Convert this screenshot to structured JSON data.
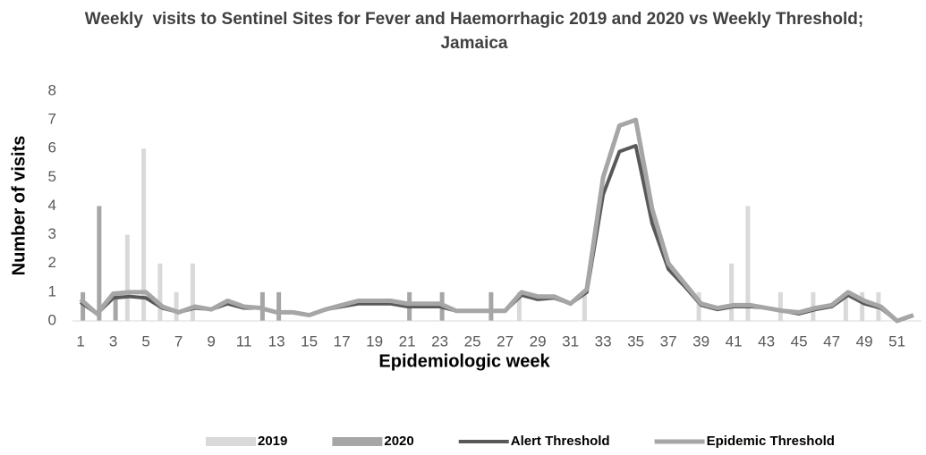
{
  "chart_data": {
    "type": "bar",
    "title": "Weekly  visits to Sentinel Sites for Fever and Haemorrhagic 2019 and 2020 vs Weekly Threshold; Jamaica",
    "x_label": "Epidemiologic week",
    "y_label": "Number of visits",
    "categories": [
      "1",
      null,
      "3",
      null,
      "5",
      null,
      "7",
      null,
      "9",
      null,
      "11",
      null,
      "13",
      null,
      "15",
      null,
      "17",
      null,
      "19",
      null,
      "21",
      null,
      "23",
      null,
      "25",
      null,
      "27",
      null,
      "29",
      null,
      "31",
      null,
      "33",
      null,
      "35",
      null,
      "37",
      null,
      "39",
      null,
      "41",
      null,
      "43",
      null,
      "45",
      null,
      "47",
      null,
      "49",
      null,
      "51",
      null
    ],
    "series": [
      {
        "name": "2019",
        "type": "bar",
        "color": "#d9d9d9",
        "values": [
          0,
          0,
          0,
          3,
          6,
          2,
          1,
          2,
          0,
          0,
          0,
          0,
          0,
          0,
          0,
          0,
          0,
          0,
          0,
          0,
          0,
          0,
          0,
          0,
          0,
          0,
          0,
          1,
          0,
          0,
          0,
          1,
          0,
          0,
          0,
          0,
          0,
          0,
          1,
          0,
          2,
          4,
          0,
          1,
          0,
          1,
          0,
          1,
          1,
          1,
          0,
          0
        ]
      },
      {
        "name": "2020",
        "type": "bar",
        "color": "#a6a6a6",
        "values": [
          1,
          4,
          1,
          0,
          0,
          0,
          0,
          0,
          0,
          0,
          0,
          1,
          1,
          0,
          0,
          0,
          0,
          0,
          0,
          0,
          1,
          0,
          1,
          0,
          0,
          1,
          0,
          0,
          0,
          0,
          0,
          0,
          0,
          0,
          0,
          0,
          0,
          0,
          0,
          0,
          0,
          0,
          0,
          0,
          0,
          0,
          0,
          0,
          0,
          0,
          0,
          0
        ]
      },
      {
        "name": "Alert Threshold",
        "type": "line",
        "color": "#595959",
        "values": [
          0.65,
          0.25,
          0.8,
          0.85,
          0.8,
          0.45,
          0.3,
          0.45,
          0.4,
          0.6,
          0.45,
          0.45,
          0.3,
          0.3,
          0.2,
          0.4,
          0.5,
          0.6,
          0.6,
          0.6,
          0.5,
          0.5,
          0.5,
          0.35,
          0.35,
          0.35,
          0.35,
          0.9,
          0.75,
          0.8,
          0.6,
          1.0,
          4.4,
          5.9,
          6.1,
          3.4,
          1.8,
          1.2,
          0.55,
          0.4,
          0.5,
          0.5,
          0.45,
          0.35,
          0.25,
          0.4,
          0.5,
          0.9,
          0.6,
          0.45,
          0.0,
          0.2
        ]
      },
      {
        "name": "Epidemic Threshold",
        "type": "line",
        "color": "#a6a6a6",
        "values": [
          0.75,
          0.25,
          0.95,
          1.0,
          1.0,
          0.5,
          0.3,
          0.5,
          0.4,
          0.7,
          0.5,
          0.45,
          0.3,
          0.3,
          0.2,
          0.4,
          0.55,
          0.7,
          0.7,
          0.7,
          0.6,
          0.6,
          0.6,
          0.35,
          0.35,
          0.35,
          0.35,
          1.0,
          0.85,
          0.85,
          0.6,
          1.1,
          5.0,
          6.8,
          7.0,
          3.9,
          2.0,
          1.3,
          0.6,
          0.45,
          0.55,
          0.55,
          0.45,
          0.35,
          0.3,
          0.45,
          0.55,
          1.0,
          0.7,
          0.5,
          0.0,
          0.2
        ]
      }
    ],
    "ylim": [
      0,
      8
    ],
    "yticks": [
      0,
      1,
      2,
      3,
      4,
      5,
      6,
      7,
      8
    ],
    "grid": false,
    "legend": "bottom"
  }
}
